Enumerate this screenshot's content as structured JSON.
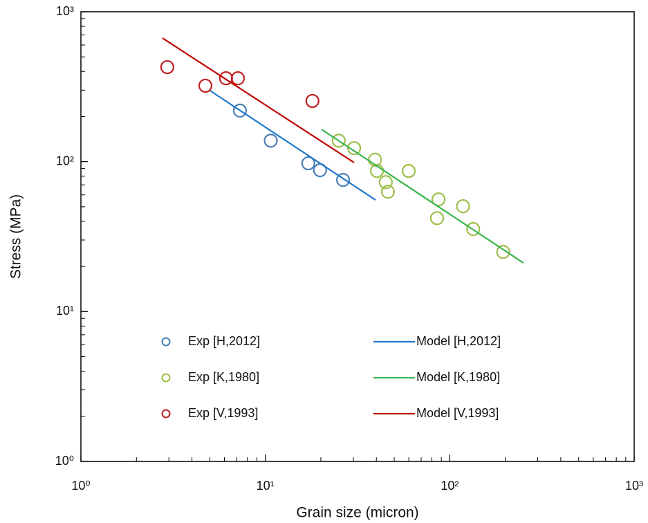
{
  "chart_data": {
    "type": "scatter",
    "xlabel": "Grain size (micron)",
    "ylabel": "Stress (MPa)",
    "xscale": "log",
    "yscale": "log",
    "xlim": [
      1,
      1000
    ],
    "ylim": [
      1,
      1000
    ],
    "xticks": [
      {
        "value": 1,
        "label": "10⁰"
      },
      {
        "value": 10,
        "label": "10¹"
      },
      {
        "value": 100,
        "label": "10²"
      },
      {
        "value": 1000,
        "label": "10³"
      }
    ],
    "yticks": [
      {
        "value": 1,
        "label": "10⁰"
      },
      {
        "value": 10,
        "label": "10¹"
      },
      {
        "value": 100,
        "label": "10²"
      },
      {
        "value": 1000,
        "label": "10³"
      }
    ],
    "minor_ticks": true,
    "grid": false,
    "series": [
      {
        "name": "Exp [H,2012]",
        "type": "scatter",
        "color": "#4a80b8",
        "x": [
          7.28,
          10.7,
          17.1,
          19.8,
          26.4
        ],
        "values": [
          219,
          138,
          97.5,
          87.7,
          75.5
        ]
      },
      {
        "name": "Exp [K,1980]",
        "type": "scatter",
        "color": "#9dbf4a",
        "x": [
          25,
          30.3,
          39.3,
          40.3,
          45,
          46.2,
          59.9,
          86.9,
          85.3,
          118,
          134,
          195
        ],
        "values": [
          138,
          123,
          103,
          86.7,
          73,
          63,
          86.7,
          56,
          42,
          50.4,
          35.5,
          25
        ]
      },
      {
        "name": "Exp [V,1993]",
        "type": "scatter",
        "color": "#c0201f",
        "x": [
          2.94,
          4.73,
          6.12,
          7.1,
          18.0
        ],
        "values": [
          427,
          321,
          360,
          360,
          254
        ]
      },
      {
        "name": "Model [H,2012]",
        "type": "line",
        "color": "#1f78c8",
        "x": [
          5.03,
          39.6
        ],
        "values": [
          297,
          55.5
        ]
      },
      {
        "name": "Model [K,1980]",
        "type": "line",
        "color": "#3ab54a",
        "x": [
          20.2,
          251
        ],
        "values": [
          164,
          21.1
        ]
      },
      {
        "name": "Model [V,1993]",
        "type": "line",
        "color": "#c00000",
        "x": [
          2.77,
          30.3
        ],
        "values": [
          667,
          98.6
        ]
      }
    ]
  }
}
